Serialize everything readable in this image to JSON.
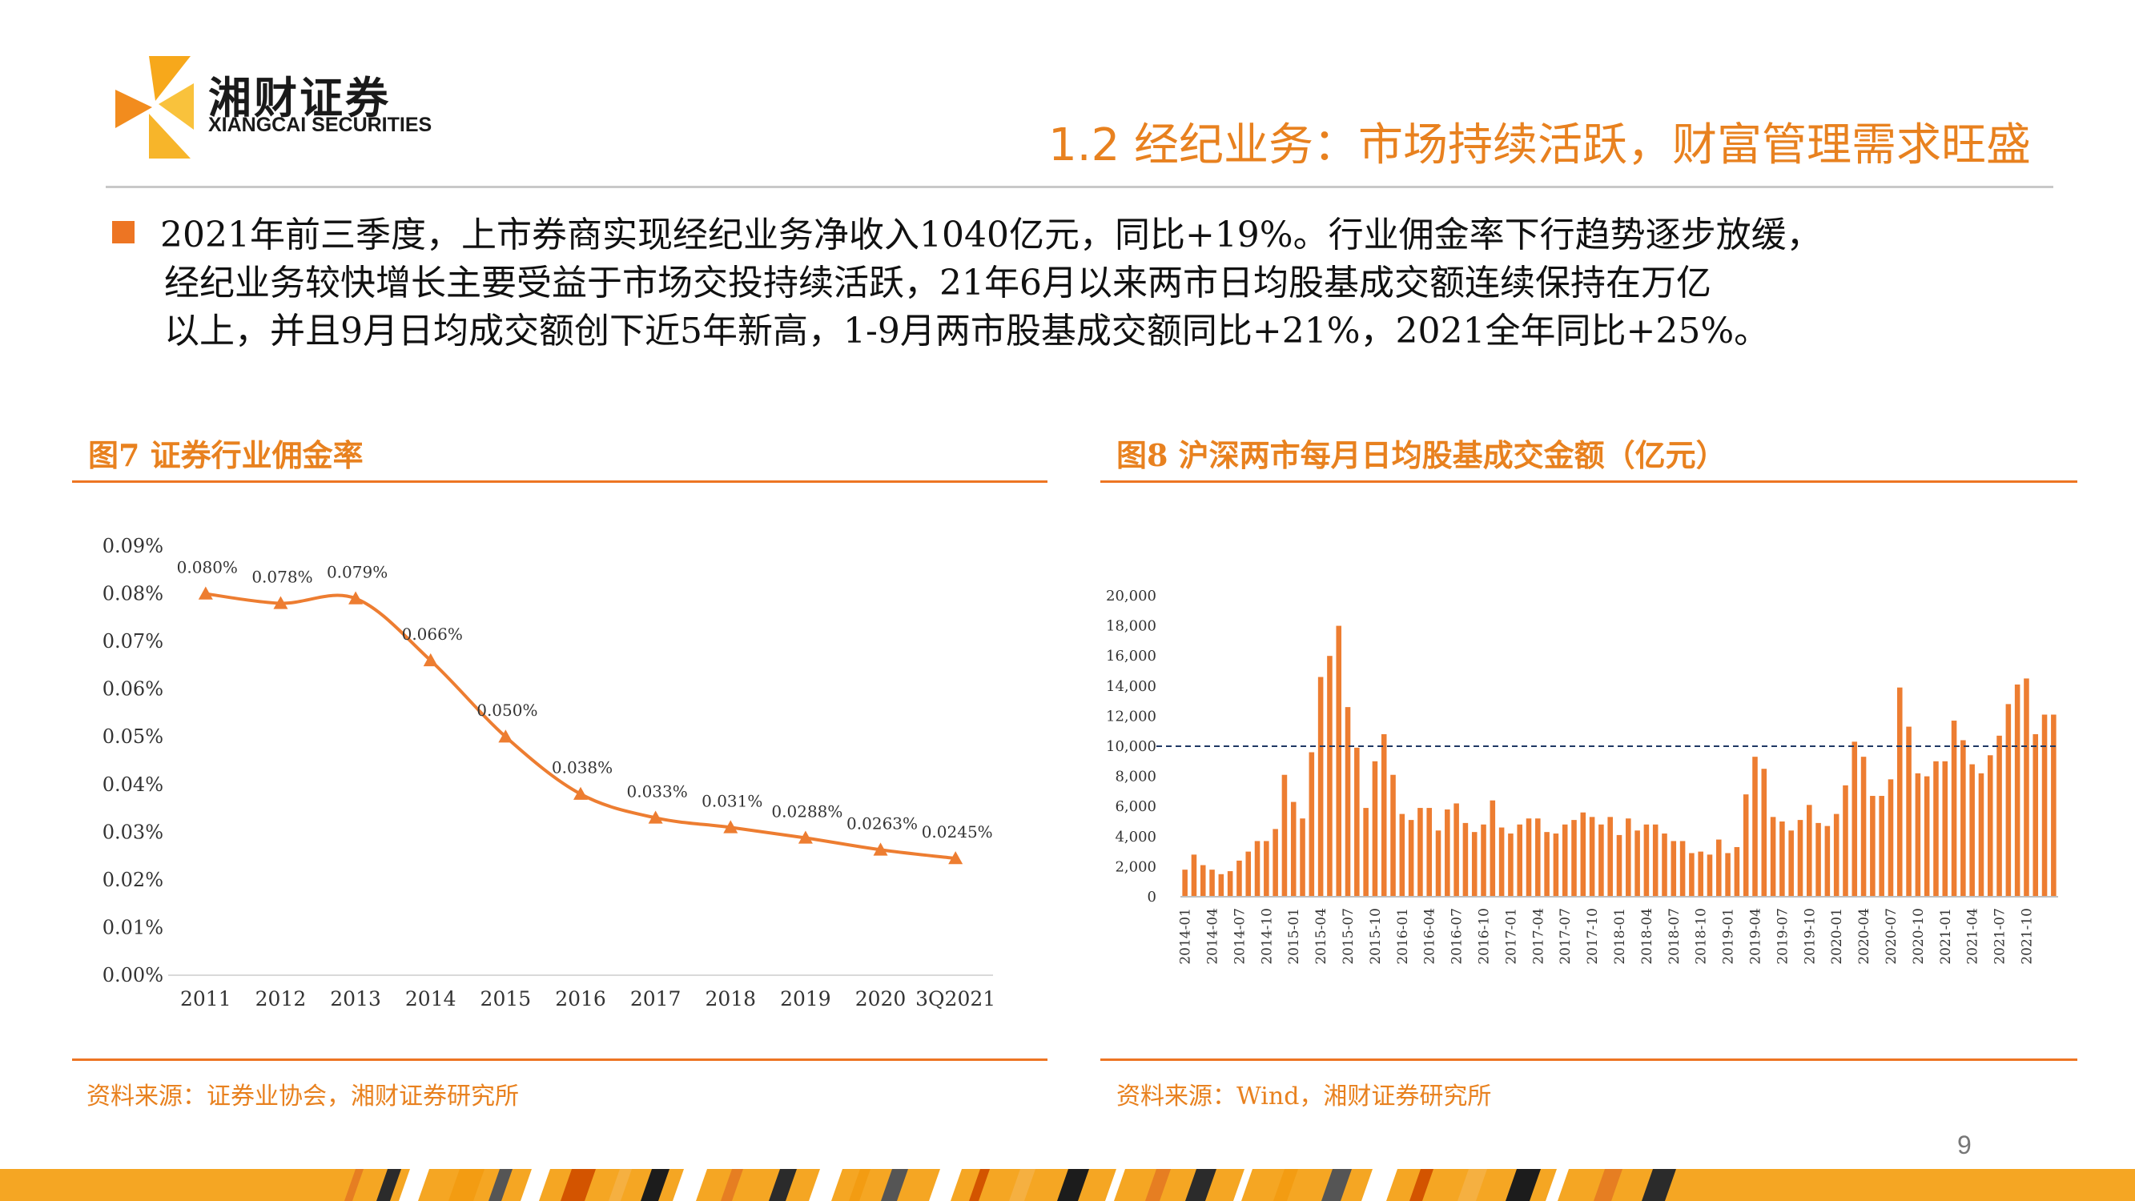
{
  "header": {
    "logo_cn": "湘财证券",
    "logo_en": "XIANGCAI SECURITIES",
    "title": "1.2 经纪业务：市场持续活跃，财富管理需求旺盛"
  },
  "bullet": {
    "line1": "2021年前三季度，上市券商实现经纪业务净收入1040亿元，同比+19%。行业佣金率下行趋势逐步放缓，",
    "line2": "经纪业务较快增长主要受益于市场交投持续活跃，21年6月以来两市日均股基成交额连续保持在万亿",
    "line3": "以上，并且9月日均成交额创下近5年新高，1-9月两市股基成交额同比+21%，2021全年同比+25%。"
  },
  "fig7": {
    "title": "图7 证券行业佣金率",
    "source": "资料来源：证券业协会，湘财证券研究所"
  },
  "fig8": {
    "title": "图8 沪深两市每月日均股基成交金额（亿元）",
    "source": "资料来源：Wind，湘财证券研究所"
  },
  "page_number": "9",
  "colors": {
    "accent": "#E8811F",
    "line": "#ED7D31"
  },
  "chart_data": [
    {
      "type": "line",
      "title": "图7 证券行业佣金率",
      "categories": [
        "2011",
        "2012",
        "2013",
        "2014",
        "2015",
        "2016",
        "2017",
        "2018",
        "2019",
        "2020",
        "3Q2021"
      ],
      "values": [
        0.08,
        0.078,
        0.079,
        0.066,
        0.05,
        0.038,
        0.033,
        0.031,
        0.0288,
        0.0263,
        0.0245
      ],
      "data_labels": [
        "0.080%",
        "0.078%",
        "0.079%",
        "0.066%",
        "0.050%",
        "0.038%",
        "0.033%",
        "0.031%",
        "0.0288%",
        "0.0263%",
        "0.0245%"
      ],
      "ylim": [
        0,
        0.09
      ],
      "yticks": [
        "0.00%",
        "0.01%",
        "0.02%",
        "0.03%",
        "0.04%",
        "0.05%",
        "0.06%",
        "0.07%",
        "0.08%",
        "0.09%"
      ],
      "xlabel": "",
      "ylabel": "",
      "grid": false,
      "legend": "none"
    },
    {
      "type": "bar",
      "title": "图8 沪深两市每月日均股基成交金额（亿元）",
      "x_start": "2014-01",
      "x_tick_labels": [
        "2014-01",
        "2014-04",
        "2014-07",
        "2014-10",
        "2015-01",
        "2015-04",
        "2015-07",
        "2015-10",
        "2016-01",
        "2016-04",
        "2016-07",
        "2016-10",
        "2017-01",
        "2017-04",
        "2017-07",
        "2017-10",
        "2018-01",
        "2018-04",
        "2018-07",
        "2018-10",
        "2019-01",
        "2019-04",
        "2019-07",
        "2019-10",
        "2020-01",
        "2020-04",
        "2020-07",
        "2020-10",
        "2021-01",
        "2021-04",
        "2021-07",
        "2021-10"
      ],
      "values": [
        1800,
        2800,
        2100,
        1800,
        1500,
        1700,
        2400,
        3000,
        3700,
        3700,
        4500,
        8100,
        6300,
        5200,
        9600,
        14600,
        16000,
        18000,
        12600,
        9900,
        5900,
        9000,
        10800,
        8100,
        5500,
        5100,
        5900,
        5900,
        4400,
        5800,
        6200,
        4900,
        4300,
        4800,
        6400,
        4600,
        4200,
        4800,
        5200,
        5200,
        4300,
        4200,
        4800,
        5100,
        5600,
        5300,
        4800,
        5300,
        4100,
        5200,
        4400,
        4800,
        4800,
        4200,
        3700,
        3700,
        2900,
        3000,
        2800,
        3800,
        2900,
        3300,
        6800,
        9300,
        8500,
        5300,
        5000,
        4400,
        5100,
        6100,
        4900,
        4700,
        5500,
        7400,
        10300,
        9300,
        6700,
        6700,
        7800,
        13900,
        11300,
        8200,
        8000,
        9000,
        9000,
        11700,
        10400,
        8800,
        8200,
        9400,
        10700,
        12800,
        14100,
        14500,
        10800,
        12100,
        12100
      ],
      "reference_line": 10000,
      "ylim": [
        0,
        20000
      ],
      "yticks": [
        "0",
        "2,000",
        "4,000",
        "6,000",
        "8,000",
        "10,000",
        "12,000",
        "14,000",
        "16,000",
        "18,000",
        "20,000"
      ],
      "xlabel": "",
      "ylabel": "",
      "grid": false,
      "legend": "none"
    }
  ]
}
